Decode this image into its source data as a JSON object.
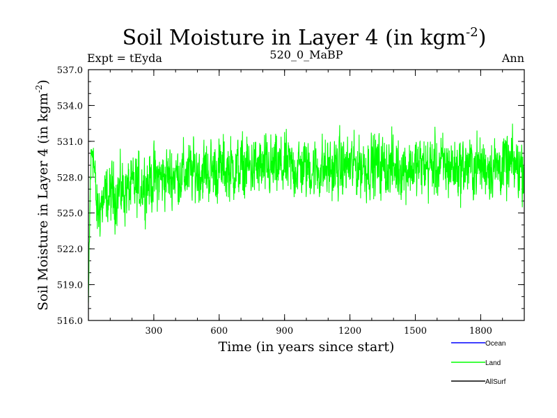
{
  "chart_data": {
    "type": "line",
    "title": "Soil Moisture in Layer 4 (in kgm",
    "title_sup": "-2",
    "title_end": ")",
    "subtitle_left": "Expt = tEyda",
    "subtitle_center": "520_0_MaBP",
    "subtitle_right": "Ann",
    "xlabel": "Time (in years since start)",
    "ylabel": "Soil Moisture in Layer 4 (in kgm",
    "ylabel_sup": "-2",
    "ylabel_end": ")",
    "xlim": [
      0,
      2000
    ],
    "ylim": [
      516.0,
      537.0
    ],
    "x_ticks": [
      300,
      600,
      900,
      1200,
      1500,
      1800
    ],
    "x_tick_labels": [
      "300",
      "600",
      "900",
      "1200",
      "1500",
      "1800"
    ],
    "y_ticks": [
      516.0,
      519.0,
      522.0,
      525.0,
      528.0,
      531.0,
      534.0,
      537.0
    ],
    "y_tick_labels": [
      "516.0",
      "519.0",
      "522.0",
      "525.0",
      "528.0",
      "531.0",
      "534.0",
      "537.0"
    ],
    "legend": [
      "Ocean",
      "Land",
      "AllSurf"
    ],
    "legend_colors": [
      "#0000ff",
      "#00ff00",
      "#000000"
    ],
    "series": [
      {
        "name": "Land",
        "color": "#00ff00",
        "x": [
          0,
          10,
          20,
          30,
          40,
          50,
          75,
          100,
          150,
          200,
          250,
          300,
          350,
          400,
          450,
          500,
          550,
          600,
          650,
          700,
          750,
          800,
          850,
          900,
          950,
          1000,
          1050,
          1100,
          1150,
          1200,
          1250,
          1300,
          1350,
          1400,
          1450,
          1500,
          1550,
          1600,
          1650,
          1700,
          1750,
          1800,
          1850,
          1900,
          1950,
          2000
        ],
        "values": [
          517.5,
          528.5,
          531.0,
          527.5,
          524.8,
          525.5,
          526.0,
          526.5,
          526.8,
          527.0,
          527.4,
          527.8,
          528.0,
          528.2,
          528.3,
          528.5,
          528.5,
          528.6,
          528.7,
          528.7,
          528.8,
          528.7,
          528.7,
          528.8,
          528.8,
          528.8,
          528.7,
          528.7,
          528.8,
          528.9,
          528.9,
          529.0,
          528.9,
          528.8,
          528.8,
          528.8,
          528.9,
          528.9,
          528.9,
          528.8,
          528.9,
          528.9,
          528.9,
          528.9,
          528.9,
          528.9
        ]
      }
    ]
  }
}
